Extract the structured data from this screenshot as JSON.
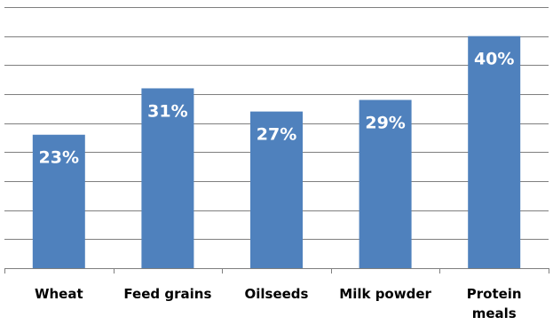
{
  "chart_data": {
    "type": "bar",
    "title": "",
    "xlabel": "",
    "ylabel": "",
    "categories": [
      "Wheat",
      "Feed grains",
      "Oilseeds",
      "Milk powder",
      "Protein meals"
    ],
    "category_lines": [
      [
        "Wheat"
      ],
      [
        "Feed grains"
      ],
      [
        "Oilseeds"
      ],
      [
        "Milk powder"
      ],
      [
        "Protein",
        "meals"
      ]
    ],
    "values": [
      23,
      31,
      27,
      29,
      40
    ],
    "value_labels": [
      "23%",
      "31%",
      "27%",
      "29%",
      "40%"
    ],
    "unit": "%",
    "ylim": [
      0,
      45
    ],
    "grid": true,
    "legend": "none",
    "bar_color": "#4f81bd",
    "grid_color": "#7f7f7f"
  }
}
